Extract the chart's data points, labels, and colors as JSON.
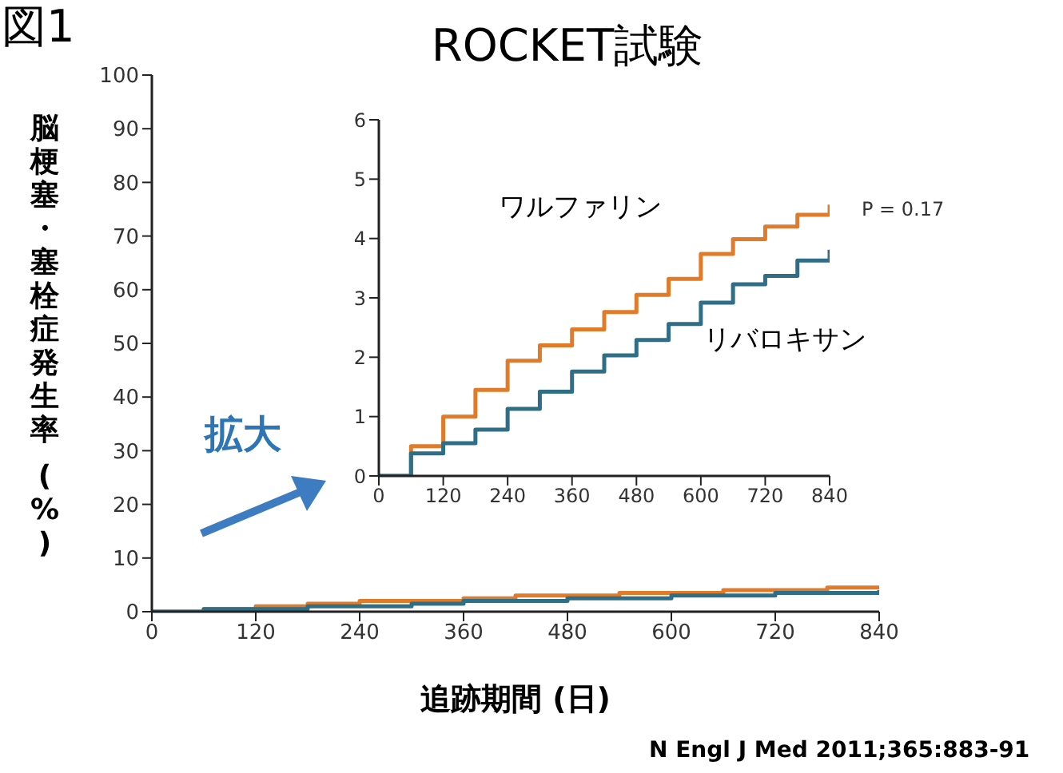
{
  "chart_data": [
    {
      "type": "step",
      "title": "ROCKET試験",
      "xlabel": "追跡期間 (日)",
      "ylabel": "脳梗塞・塞栓症発生率 (%)",
      "annotations": [
        "図1",
        "拡大",
        "N Engl J Med 2011;365:883-91"
      ],
      "marker": "none",
      "x": [
        0,
        60,
        120,
        180,
        240,
        300,
        360,
        420,
        480,
        540,
        600,
        660,
        720,
        780,
        840
      ],
      "series": [
        {
          "color": "#e07b2a",
          "values": [
            0,
            0.5,
            1,
            1.5,
            2,
            2,
            2.5,
            3,
            3,
            3.5,
            3.5,
            4,
            4,
            4.5,
            4.5
          ]
        },
        {
          "color": "#2e6e87",
          "values": [
            0,
            0.5,
            0.5,
            1,
            1,
            1.5,
            2,
            2,
            2.5,
            2.5,
            3,
            3,
            3.5,
            3.5,
            4
          ]
        }
      ],
      "xlim": [
        0,
        840
      ],
      "xticks": [
        0,
        120,
        240,
        360,
        480,
        600,
        720,
        840
      ],
      "ylim": [
        0,
        100
      ],
      "yticks": [
        0,
        10,
        20,
        30,
        40,
        50,
        60,
        70,
        80,
        90,
        100
      ]
    },
    {
      "type": "step",
      "annotations": [
        "P = 0.17"
      ],
      "marker": "none",
      "x": [
        0,
        60,
        120,
        180,
        240,
        300,
        360,
        420,
        480,
        540,
        600,
        660,
        720,
        780,
        840
      ],
      "series": [
        {
          "name": "ワルファリン",
          "color": "#e07b2a",
          "values": [
            0,
            0.5,
            1.0,
            1.45,
            1.94,
            2.2,
            2.47,
            2.76,
            3.05,
            3.32,
            3.74,
            3.99,
            4.2,
            4.4,
            4.57
          ]
        },
        {
          "name": "リバロキサン",
          "color": "#2e6e87",
          "values": [
            0,
            0.38,
            0.55,
            0.78,
            1.13,
            1.42,
            1.76,
            2.03,
            2.29,
            2.56,
            2.92,
            3.23,
            3.37,
            3.63,
            3.81
          ]
        }
      ],
      "xlim": [
        0,
        840
      ],
      "xticks": [
        0,
        120,
        240,
        360,
        480,
        600,
        720,
        840
      ],
      "ylim": [
        0,
        6
      ],
      "yticks": [
        0,
        1,
        2,
        3,
        4,
        5,
        6
      ]
    }
  ]
}
